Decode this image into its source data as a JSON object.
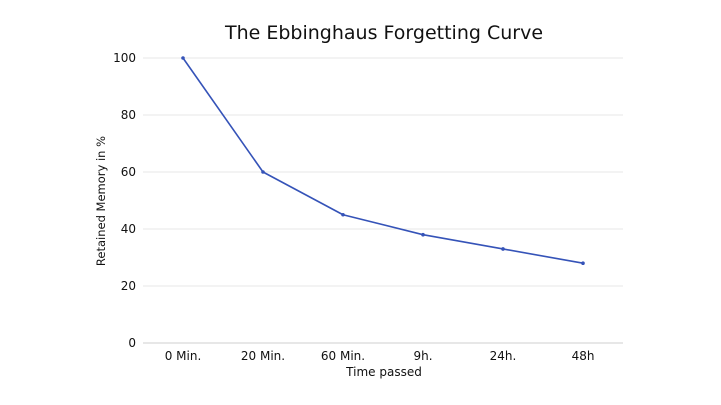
{
  "chart_data": {
    "type": "line",
    "title": "The Ebbinghaus Forgetting Curve",
    "xlabel": "Time passed",
    "ylabel": "Retained Memory in %",
    "categories": [
      "0 Min.",
      "20 Min.",
      "60 Min.",
      "9h.",
      "24h.",
      "48h"
    ],
    "series": [
      {
        "name": "Retained Memory",
        "values": [
          100,
          60,
          45,
          38,
          33,
          28
        ],
        "color": "#3553b8"
      }
    ],
    "ylim": [
      0,
      100
    ],
    "yticks": [
      "0",
      "20",
      "40",
      "60",
      "80",
      "100"
    ],
    "grid": true,
    "legend": "none"
  },
  "colors": {
    "text": "#111111",
    "grid": "#e7e7e7",
    "axis": "#cfcfcf",
    "line": "#3553b8"
  }
}
